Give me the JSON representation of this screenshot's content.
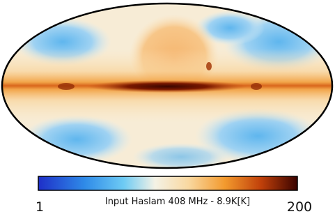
{
  "colorbar": {
    "label": "Input Haslam 408 MHz - 8.9K[K]",
    "ticks": [
      1,
      200
    ]
  }
}
